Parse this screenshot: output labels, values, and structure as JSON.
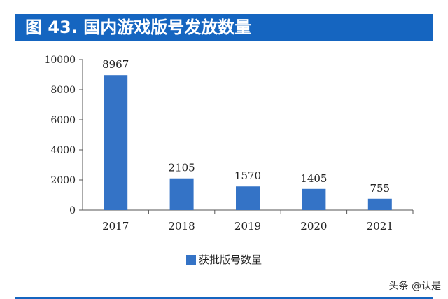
{
  "header": {
    "title": "图 43. 国内游戏版号发放数量"
  },
  "chart_data": {
    "type": "bar",
    "categories": [
      "2017",
      "2018",
      "2019",
      "2020",
      "2021"
    ],
    "series": [
      {
        "name": "获批版号数量",
        "values": [
          8967,
          2105,
          1570,
          1405,
          755
        ]
      }
    ],
    "data_labels": [
      "8967",
      "2105",
      "1570",
      "1405",
      "755"
    ],
    "yticks": [
      "0",
      "2000",
      "4000",
      "6000",
      "8000",
      "10000"
    ],
    "ylim": [
      0,
      10000
    ],
    "bar_color": "#3473c6",
    "legend_position": "bottom"
  },
  "legend": {
    "label": "获批版号数量"
  },
  "watermark": "头条 @认是",
  "colors": {
    "accent": "#1565c0",
    "bar": "#3473c6"
  }
}
